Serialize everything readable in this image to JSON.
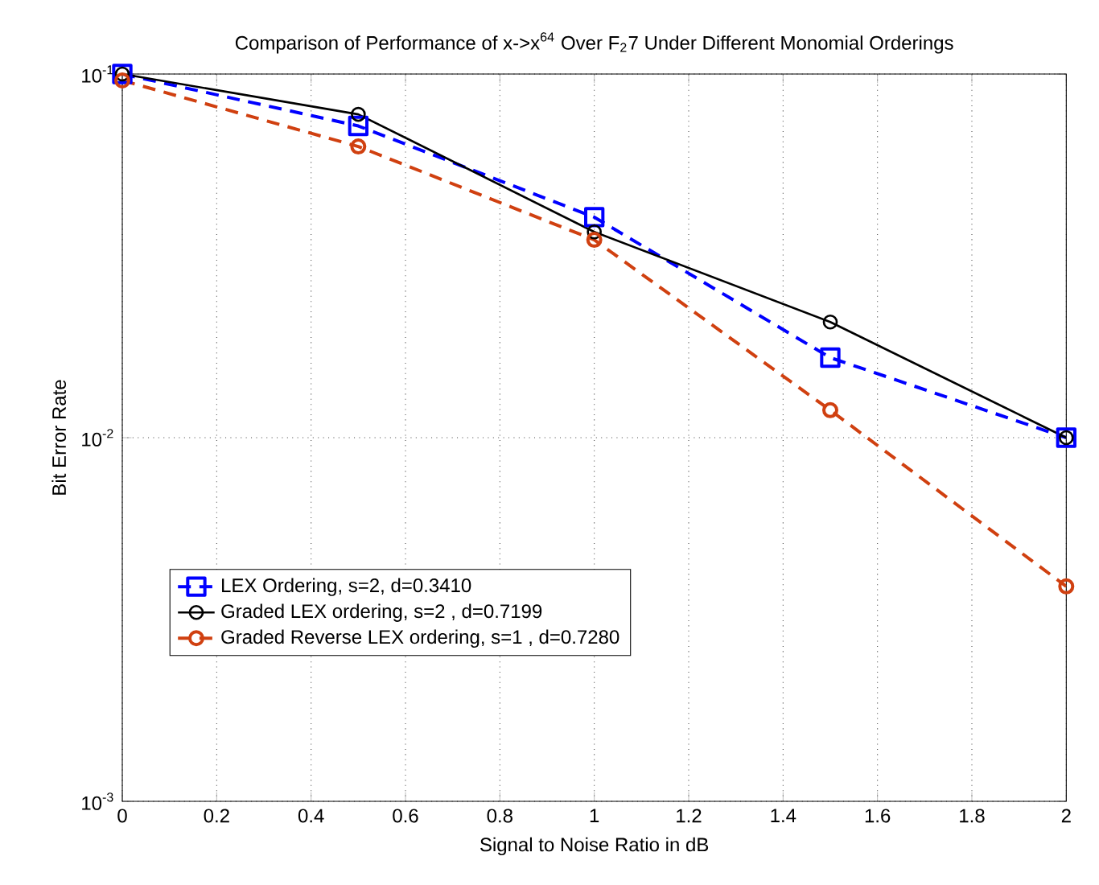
{
  "chart_data": {
    "type": "line",
    "title": "Comparison of Performance of  x->x$^{64}$ Over F$_{2}$7 Under Different Monomial Orderings",
    "xlabel": "Signal to Noise Ratio in dB",
    "ylabel": "Bit Error Rate",
    "x": [
      0,
      0.5,
      1,
      1.5,
      2
    ],
    "series": [
      {
        "name": "LEX Ordering, s=2, d=0.3410",
        "color": "#0000ff",
        "values": [
          0.1,
          0.072,
          0.0404,
          0.0166,
          0.01
        ],
        "marker": "square",
        "line_style": "dashed"
      },
      {
        "name": "Graded LEX ordering, s=2 , d=0.7199",
        "color": "#000000",
        "values": [
          0.1,
          0.0775,
          0.0368,
          0.0208,
          0.01
        ],
        "marker": "circle",
        "line_style": "solid"
      },
      {
        "name": "Graded Reverse LEX ordering, s=1 , d=0.7280",
        "color": "#d04010",
        "values": [
          0.096,
          0.0632,
          0.035,
          0.0119,
          0.0039
        ],
        "marker": "circle",
        "line_style": "dashed"
      }
    ],
    "log": "y",
    "grid": true,
    "legend": "bottom left",
    "xlim": [
      0,
      2
    ],
    "ylim": [
      0.001,
      0.1
    ],
    "xticks": [
      0,
      0.2,
      0.4,
      0.6,
      0.8,
      1,
      1.2,
      1.4,
      1.6,
      1.8,
      2
    ],
    "yticks": [
      {
        "value": 0.001,
        "label": "10$^{-3}$"
      },
      {
        "value": 0.01,
        "label": "10$^{-2}$"
      },
      {
        "value": 0.1,
        "label": "10$^{-1}$"
      }
    ]
  }
}
